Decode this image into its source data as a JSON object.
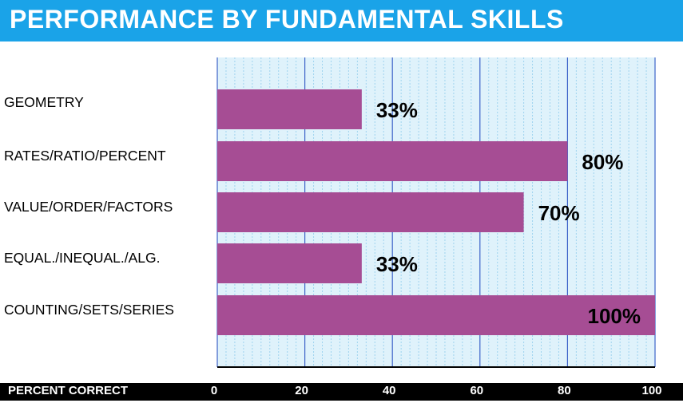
{
  "header": {
    "title": "PERFORMANCE BY FUNDAMENTAL SKILLS"
  },
  "colors": {
    "title_bar": "#1aa3e8",
    "bar": "#a64d94",
    "plot_bg": "#dff2fb",
    "gridline": "#3d63c9"
  },
  "chart_data": {
    "type": "bar",
    "orientation": "horizontal",
    "title": "PERFORMANCE BY FUNDAMENTAL SKILLS",
    "xlabel": "PERCENT CORRECT",
    "ylabel": "",
    "categories": [
      "GEOMETRY",
      "RATES/RATIO/PERCENT",
      "VALUE/ORDER/FACTORS",
      "EQUAL./INEQUAL./ALG.",
      "COUNTING/SETS/SERIES"
    ],
    "values": [
      33,
      80,
      70,
      33,
      100
    ],
    "data_labels": [
      "33%",
      "80%",
      "70%",
      "33%",
      "100%"
    ],
    "xlim": [
      0,
      100
    ],
    "ticks": [
      "0",
      "20",
      "40",
      "60",
      "80",
      "100"
    ],
    "grid": true
  }
}
